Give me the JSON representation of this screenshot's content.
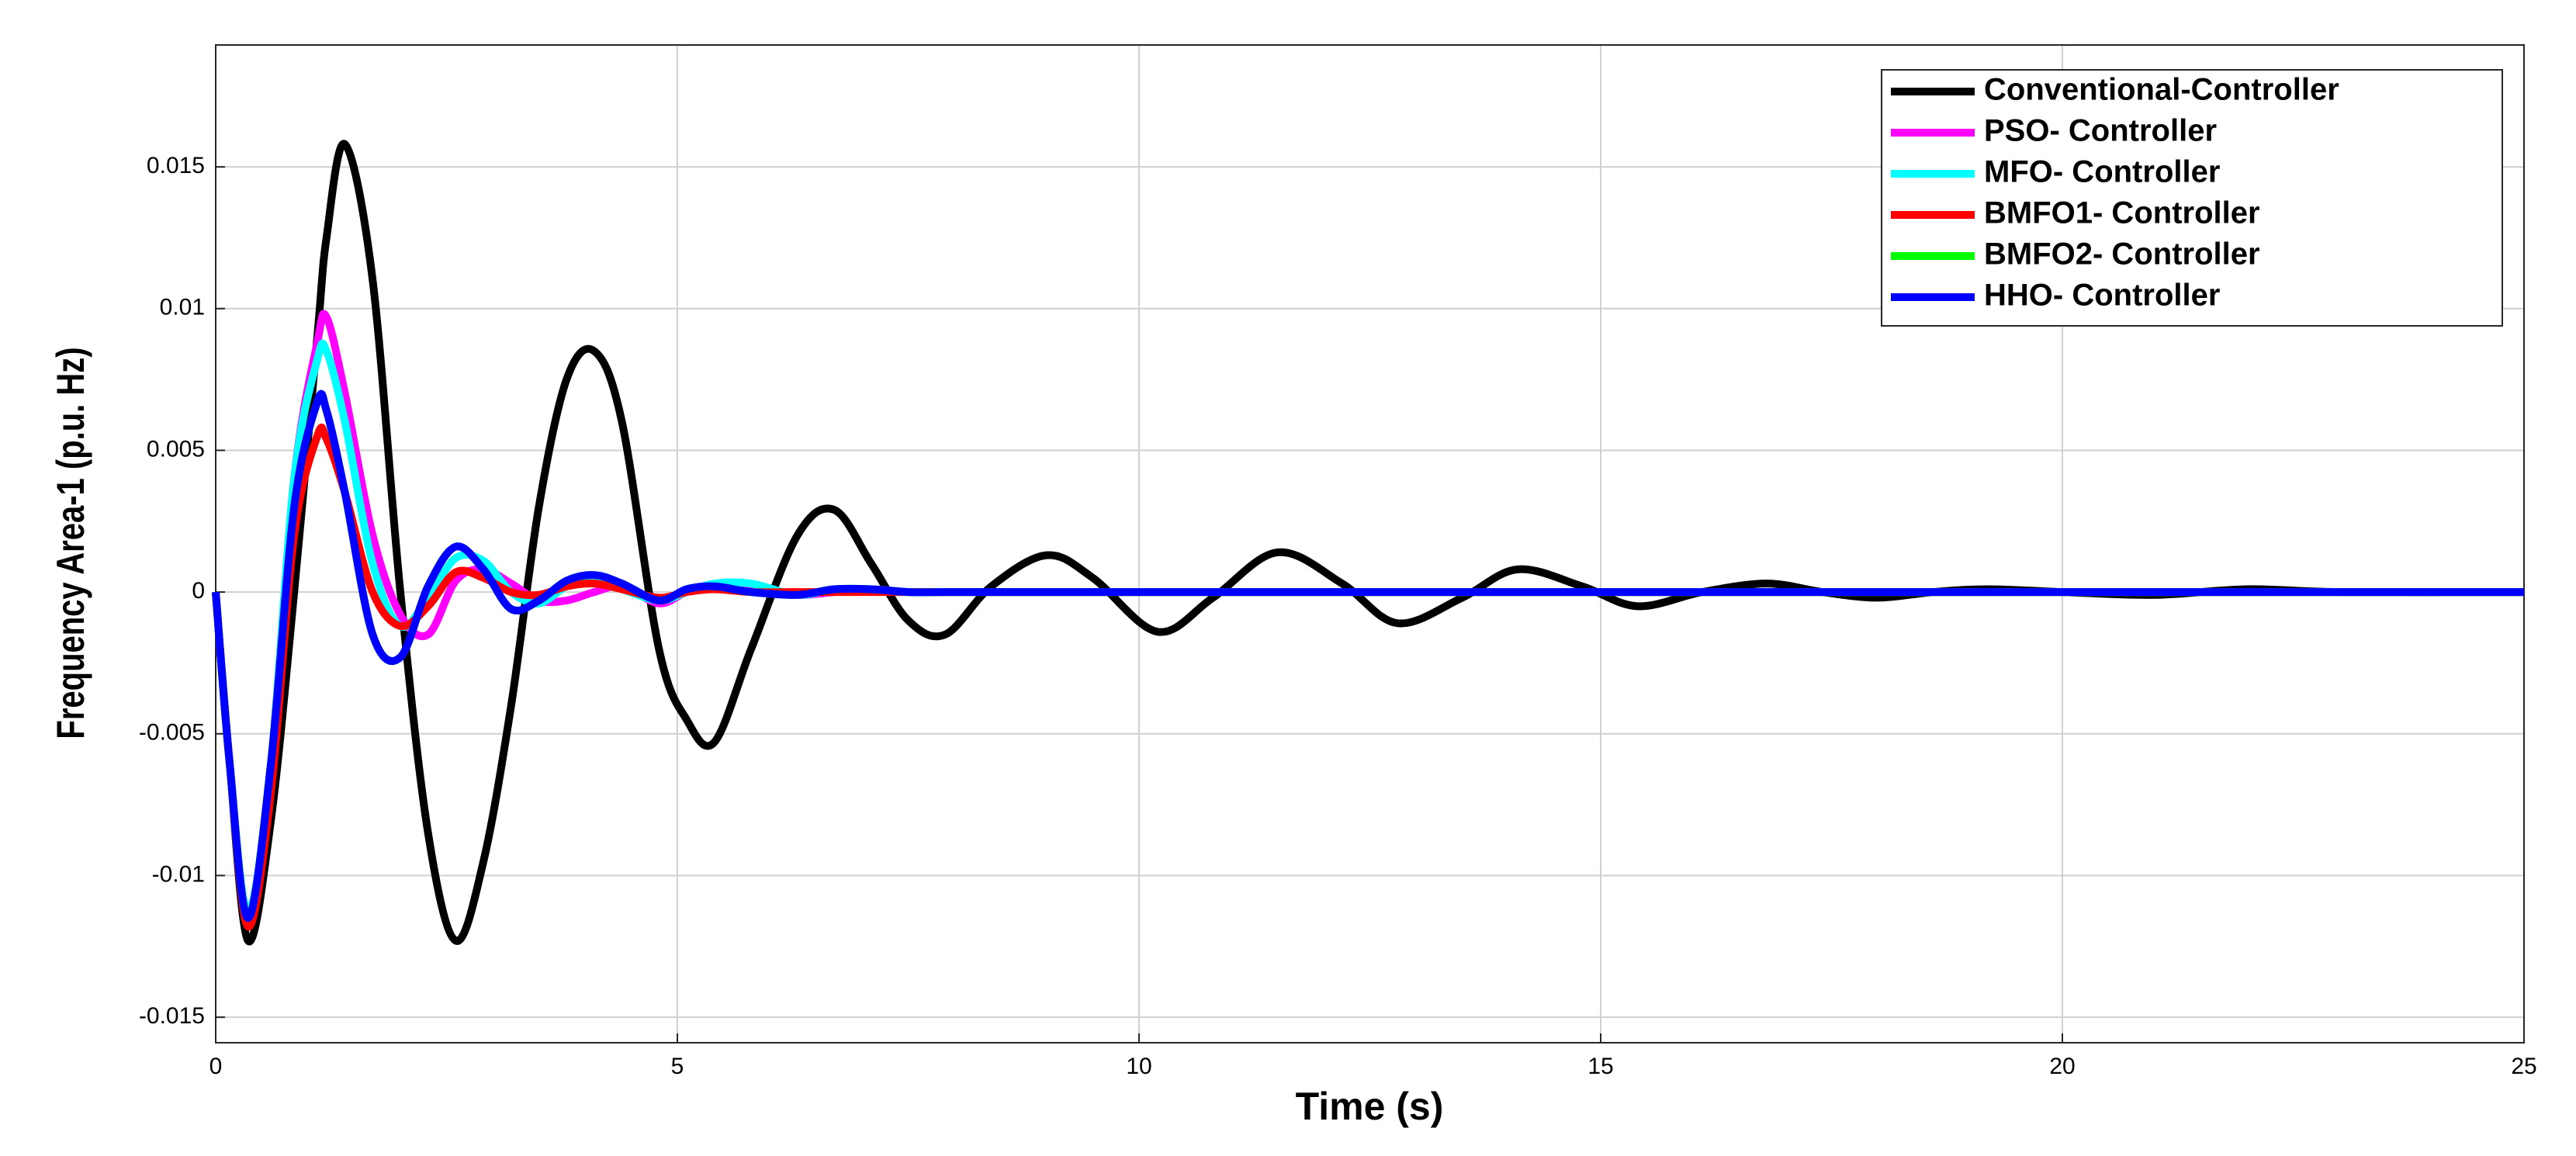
{
  "chart_data": {
    "type": "line",
    "x_label": "Time (s)",
    "y_label": "Frequency Area-1 (p.u. Hz)",
    "xlim": [
      0,
      25
    ],
    "xticks": [
      0,
      5,
      10,
      15,
      20,
      25
    ],
    "ylim": [
      -0.0159,
      0.0193
    ],
    "yticks": [
      -0.015,
      -0.01,
      -0.005,
      0,
      0.005,
      0.01,
      0.015
    ],
    "grid": true,
    "legend": "northeast",
    "x": [
      0,
      0.15,
      0.35,
      0.6,
      0.85,
      1.1,
      1.2,
      1.4,
      1.7,
      2.0,
      2.3,
      2.6,
      2.9,
      3.2,
      3.5,
      3.8,
      4.1,
      4.4,
      4.8,
      5.1,
      5.4,
      5.8,
      6.3,
      6.7,
      7.1,
      7.5,
      7.9,
      8.4,
      9.0,
      9.5,
      10.2,
      10.8,
      11.5,
      12.2,
      12.8,
      13.5,
      14.1,
      14.8,
      15.4,
      16.1,
      16.8,
      17.4,
      18.0,
      18.6,
      19.2,
      20,
      21,
      22,
      23,
      25
    ],
    "series": [
      {
        "name": "Conventional-Controller",
        "color": "#000000",
        "values": [
          0,
          -0.006,
          -0.0123,
          -0.008,
          0.0,
          0.009,
          0.0125,
          0.0158,
          0.011,
          0.0,
          -0.0085,
          -0.0123,
          -0.0095,
          -0.004,
          0.003,
          0.0075,
          0.0085,
          0.006,
          -0.002,
          -0.0045,
          -0.0053,
          -0.002,
          0.002,
          0.0029,
          0.001,
          -0.001,
          -0.0015,
          0.0002,
          0.0013,
          0.0005,
          -0.0014,
          -0.0002,
          0.0014,
          0.0003,
          -0.0011,
          -0.0002,
          0.0008,
          0.0002,
          -0.0005,
          0,
          0.0003,
          0,
          -0.0002,
          0,
          0.0001,
          0,
          -0.0001,
          0.0001,
          0,
          0
        ]
      },
      {
        "name": "PSO- Controller",
        "color": "#ff00ff",
        "values": [
          0,
          -0.006,
          -0.0115,
          -0.006,
          0.004,
          0.0088,
          0.0097,
          0.007,
          0.002,
          -0.0008,
          -0.0015,
          0.0004,
          0.0008,
          0.0003,
          -0.0003,
          -0.0003,
          0,
          0.0002,
          -0.0004,
          0,
          0.0002,
          0.0001,
          -0.0001,
          0,
          0.0001,
          0,
          0,
          0,
          0,
          0,
          0,
          0,
          0,
          0,
          0,
          0,
          0,
          0,
          0,
          0,
          0,
          0,
          0,
          0,
          0,
          0,
          0,
          0,
          0,
          0
        ]
      },
      {
        "name": "MFO- Controller",
        "color": "#00ffff",
        "values": [
          0,
          -0.006,
          -0.0113,
          -0.006,
          0.004,
          0.0082,
          0.0085,
          0.006,
          0.001,
          -0.0012,
          -0.0002,
          0.0012,
          0.0011,
          0,
          -0.0004,
          0.0002,
          0.0004,
          0.0001,
          -0.0003,
          0,
          0.0003,
          0.0003,
          -0.0001,
          0.0001,
          0.0001,
          0,
          0,
          0,
          0,
          0,
          0,
          0,
          0,
          0,
          0,
          0,
          0,
          0,
          0,
          0,
          0,
          0,
          0,
          0,
          0,
          0,
          0,
          0,
          0,
          0
        ]
      },
      {
        "name": "BMFO1- Controller",
        "color": "#ff0000",
        "values": [
          0,
          -0.006,
          -0.0118,
          -0.007,
          0.002,
          0.0055,
          0.0054,
          0.0035,
          0,
          -0.0012,
          -0.0005,
          0.0007,
          0.0005,
          0,
          -0.0001,
          0.0002,
          0.0003,
          0.0001,
          -0.0002,
          0,
          0.0001,
          0,
          0,
          0,
          0,
          0,
          0,
          0,
          0,
          0,
          0,
          0,
          0,
          0,
          0,
          0,
          0,
          0,
          0,
          0,
          0,
          0,
          0,
          0,
          0,
          0,
          0,
          0,
          0,
          0
        ]
      },
      {
        "name": "BMFO2- Controller",
        "color": "#00ff00",
        "values": [
          0,
          -0.006,
          -0.0115,
          -0.006,
          0.003,
          0.0067,
          0.0064,
          0.0035,
          -0.0015,
          -0.0023,
          0.0002,
          0.0016,
          0.0008,
          -0.0006,
          -0.0003,
          0.0004,
          0.0006,
          0.0003,
          -0.0003,
          0.0001,
          0.0002,
          0,
          -0.0001,
          0.0001,
          0.0001,
          0,
          0,
          0,
          0,
          0,
          0,
          0,
          0,
          0,
          0,
          0,
          0,
          0,
          0,
          0,
          0,
          0,
          0,
          0,
          0,
          0,
          0,
          0,
          0,
          0
        ]
      },
      {
        "name": "HHO- Controller",
        "color": "#0000ff",
        "values": [
          0,
          -0.006,
          -0.0115,
          -0.006,
          0.003,
          0.0067,
          0.0064,
          0.0035,
          -0.0015,
          -0.0023,
          0.0002,
          0.0016,
          0.0008,
          -0.0006,
          -0.0003,
          0.0004,
          0.0006,
          0.0003,
          -0.0003,
          0.0001,
          0.0002,
          0,
          -0.0001,
          0.0001,
          0.0001,
          0,
          0,
          0,
          0,
          0,
          0,
          0,
          0,
          0,
          0,
          0,
          0,
          0,
          0,
          0,
          0,
          0,
          0,
          0,
          0,
          0,
          0,
          0,
          0,
          0
        ]
      }
    ]
  }
}
